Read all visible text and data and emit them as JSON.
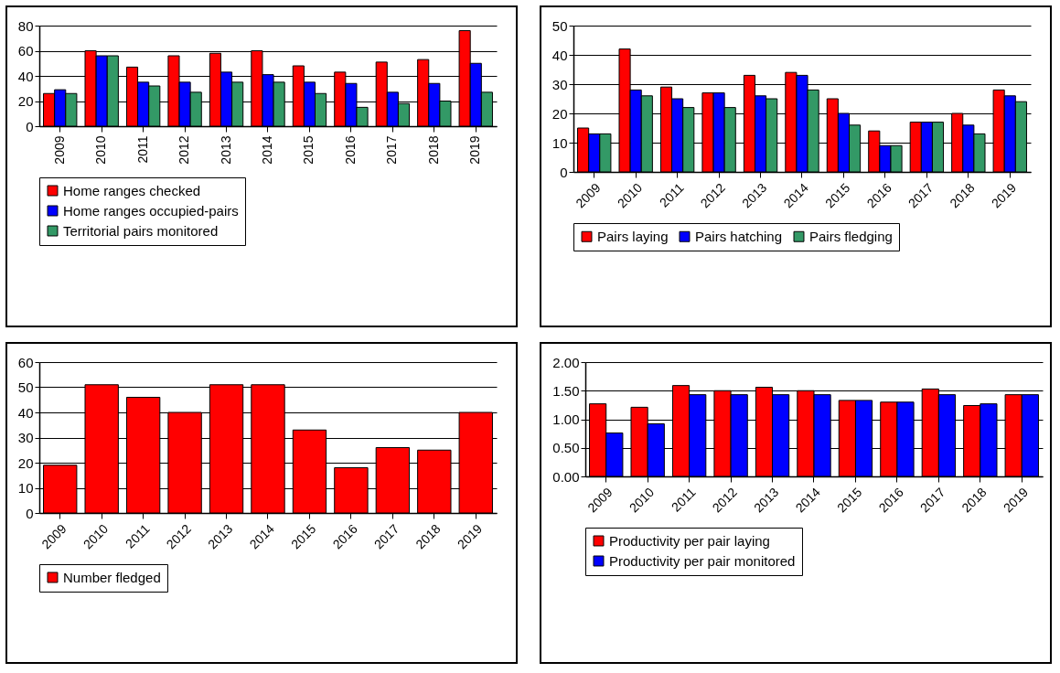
{
  "chart_data": [
    {
      "type": "bar",
      "categories": [
        "2009",
        "2010",
        "2011",
        "2012",
        "2013",
        "2014",
        "2015",
        "2016",
        "2017",
        "2018",
        "2019"
      ],
      "series": [
        {
          "name": "Home ranges checked",
          "color": "#ff0000",
          "values": [
            26,
            60,
            47,
            56,
            58,
            60,
            48,
            43,
            51,
            53,
            76
          ]
        },
        {
          "name": "Home ranges occupied-pairs",
          "color": "#0000ff",
          "values": [
            29,
            56,
            35,
            35,
            43,
            41,
            35,
            34,
            27,
            34,
            50
          ]
        },
        {
          "name": "Territorial pairs monitored",
          "color": "#339966",
          "values": [
            26,
            56,
            32,
            27,
            35,
            35,
            26,
            15,
            18,
            20,
            27
          ]
        }
      ],
      "ylim": [
        0,
        80
      ],
      "yticks": [
        0,
        20,
        40,
        60,
        80
      ],
      "grid": "y",
      "legend": "bottom"
    },
    {
      "type": "bar",
      "categories": [
        "2009",
        "2010",
        "2011",
        "2012",
        "2013",
        "2014",
        "2015",
        "2016",
        "2017",
        "2018",
        "2019"
      ],
      "series": [
        {
          "name": "Pairs laying",
          "color": "#ff0000",
          "values": [
            15,
            42,
            29,
            27,
            33,
            34,
            25,
            14,
            17,
            20,
            28
          ]
        },
        {
          "name": "Pairs hatching",
          "color": "#0000ff",
          "values": [
            13,
            28,
            25,
            27,
            26,
            33,
            20,
            9,
            17,
            16,
            26
          ]
        },
        {
          "name": "Pairs fledging",
          "color": "#339966",
          "values": [
            13,
            26,
            22,
            22,
            25,
            28,
            16,
            9,
            17,
            13,
            24
          ]
        }
      ],
      "ylim": [
        0,
        50
      ],
      "yticks": [
        0,
        10,
        20,
        30,
        40,
        50
      ],
      "grid": "y",
      "legend": "bottom"
    },
    {
      "type": "bar",
      "categories": [
        "2009",
        "2010",
        "2011",
        "2012",
        "2013",
        "2014",
        "2015",
        "2016",
        "2017",
        "2018",
        "2019"
      ],
      "series": [
        {
          "name": "Number fledged",
          "color": "#ff0000",
          "values": [
            19,
            51,
            46,
            40,
            51,
            51,
            33,
            18,
            26,
            25,
            40
          ]
        }
      ],
      "ylim": [
        0,
        60
      ],
      "yticks": [
        0,
        10,
        20,
        30,
        40,
        50,
        60
      ],
      "grid": "y",
      "legend": "bottom"
    },
    {
      "type": "bar",
      "categories": [
        "2009",
        "2010",
        "2011",
        "2012",
        "2013",
        "2014",
        "2015",
        "2016",
        "2017",
        "2018",
        "2019"
      ],
      "series": [
        {
          "name": "Productivity per pair laying",
          "color": "#ff0000",
          "values": [
            1.27,
            1.21,
            1.59,
            1.5,
            1.56,
            1.5,
            1.33,
            1.3,
            1.53,
            1.24,
            1.43
          ]
        },
        {
          "name": "Productivity per pair monitored",
          "color": "#0000ff",
          "values": [
            0.76,
            0.92,
            1.43,
            1.43,
            1.43,
            1.43,
            1.33,
            1.3,
            1.43,
            1.27,
            1.43
          ]
        }
      ],
      "ylim": [
        0,
        2
      ],
      "yticks": [
        {
          "value": 0,
          "label": "0.00"
        },
        {
          "value": 0.5,
          "label": "0.50"
        },
        {
          "value": 1,
          "label": "1.00"
        },
        {
          "value": 1.5,
          "label": "1.50"
        },
        {
          "value": 2,
          "label": "2.00"
        }
      ],
      "grid": "y",
      "legend": "bottom"
    }
  ]
}
